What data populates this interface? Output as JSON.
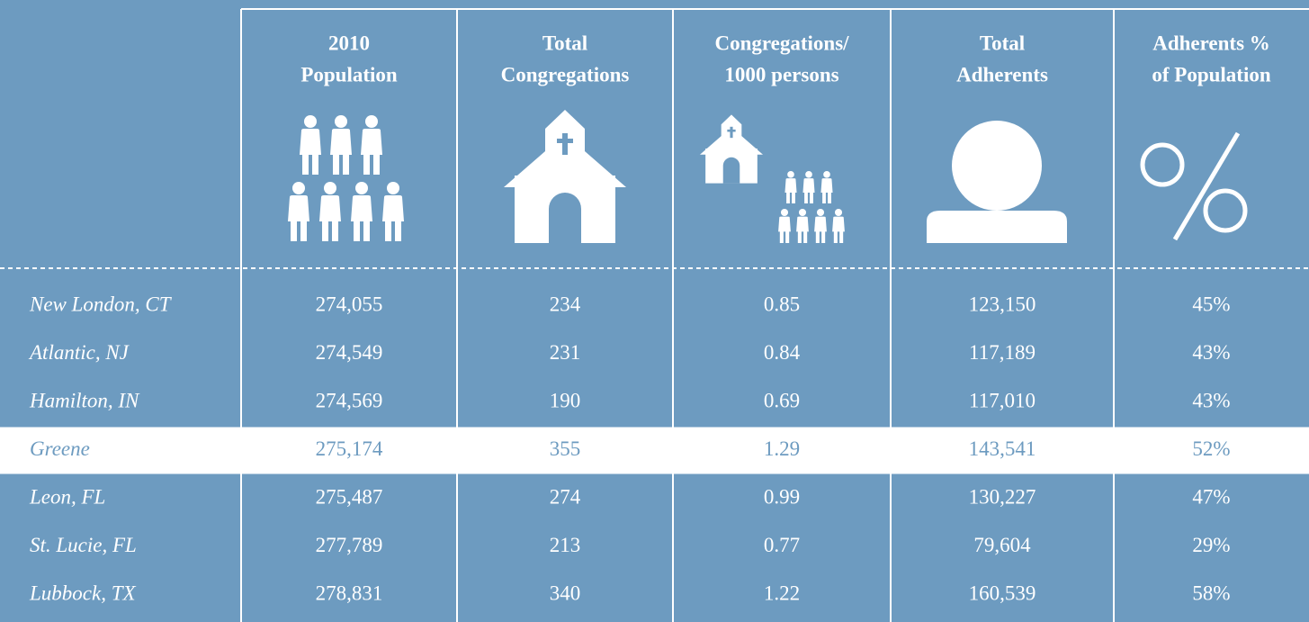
{
  "headers": [
    [
      "2010",
      "Population"
    ],
    [
      "Total",
      "Congregations"
    ],
    [
      "Congregations/",
      "1000 persons"
    ],
    [
      "Total",
      "Adherents"
    ],
    [
      "Adherents %",
      "of Population"
    ]
  ],
  "rows": [
    {
      "name": "New London, CT",
      "values": [
        "274,055",
        "234",
        "0.85",
        "123,150",
        "45%"
      ]
    },
    {
      "name": "Atlantic, NJ",
      "values": [
        "274,549",
        "231",
        "0.84",
        "117,189",
        "43%"
      ]
    },
    {
      "name": "Hamilton, IN",
      "values": [
        "274,569",
        "190",
        "0.69",
        "117,010",
        "43%"
      ]
    },
    {
      "name": "Greene",
      "values": [
        "275,174",
        "355",
        "1.29",
        "143,541",
        "52%"
      ],
      "highlighted": true
    },
    {
      "name": "Leon, FL",
      "values": [
        "275,487",
        "274",
        "0.99",
        "130,227",
        "47%"
      ]
    },
    {
      "name": "St. Lucie, FL",
      "values": [
        "277,789",
        "213",
        "0.77",
        "79,604",
        "29%"
      ]
    },
    {
      "name": "Lubbock, TX",
      "values": [
        "278,831",
        "340",
        "1.22",
        "160,539",
        "58%"
      ]
    }
  ]
}
